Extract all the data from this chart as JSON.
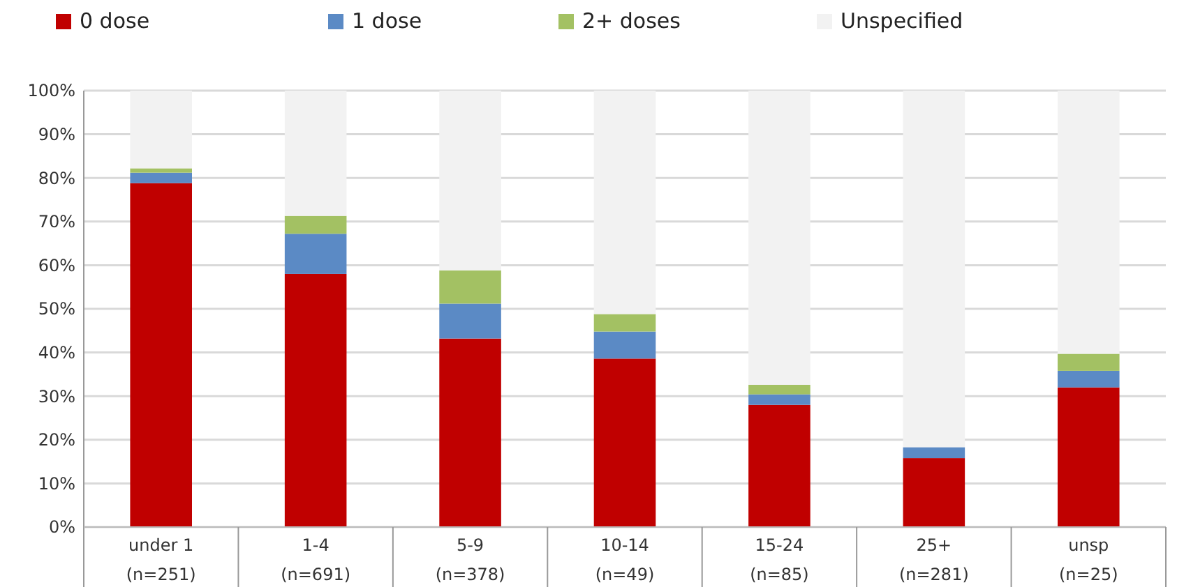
{
  "chart_data": {
    "type": "bar",
    "stacked": true,
    "categories": [
      "under 1\n(n=251)",
      "1-4\n(n=691)",
      "5-9\n(n=378)",
      "10-14\n(n=49)",
      "15-24\n(n=85)",
      "25+\n(n=281)",
      "unsp\n(n=25)"
    ],
    "series": [
      {
        "name": "0 dose",
        "color": "#c00000",
        "values": [
          78.8,
          58,
          43.2,
          38.6,
          28,
          15.8,
          32
        ]
      },
      {
        "name": "1 dose",
        "color": "#5b8ac5",
        "values": [
          2.4,
          9.2,
          8,
          6.2,
          2.4,
          2.5,
          3.8
        ]
      },
      {
        "name": "2+ doses",
        "color": "#a3c163",
        "values": [
          1,
          4.1,
          7.6,
          4,
          2.2,
          0,
          3.9
        ]
      },
      {
        "name": "Unspecified",
        "color": "#f2f2f2",
        "values": [
          17.8,
          28.7,
          41.2,
          51.2,
          67.4,
          81.7,
          60.3
        ]
      }
    ],
    "ylim": [
      0,
      100
    ],
    "yticks": [
      {
        "value": 0,
        "label": "0%"
      },
      {
        "value": 10,
        "label": "10%"
      },
      {
        "value": 20,
        "label": "20%"
      },
      {
        "value": 30,
        "label": "30%"
      },
      {
        "value": 40,
        "label": "40%"
      },
      {
        "value": 50,
        "label": "50%"
      },
      {
        "value": 60,
        "label": "60%"
      },
      {
        "value": 70,
        "label": "70%"
      },
      {
        "value": 80,
        "label": "80%"
      },
      {
        "value": 90,
        "label": "90%"
      },
      {
        "value": 100,
        "label": "100%"
      }
    ],
    "grid": "y",
    "legend": "top"
  }
}
